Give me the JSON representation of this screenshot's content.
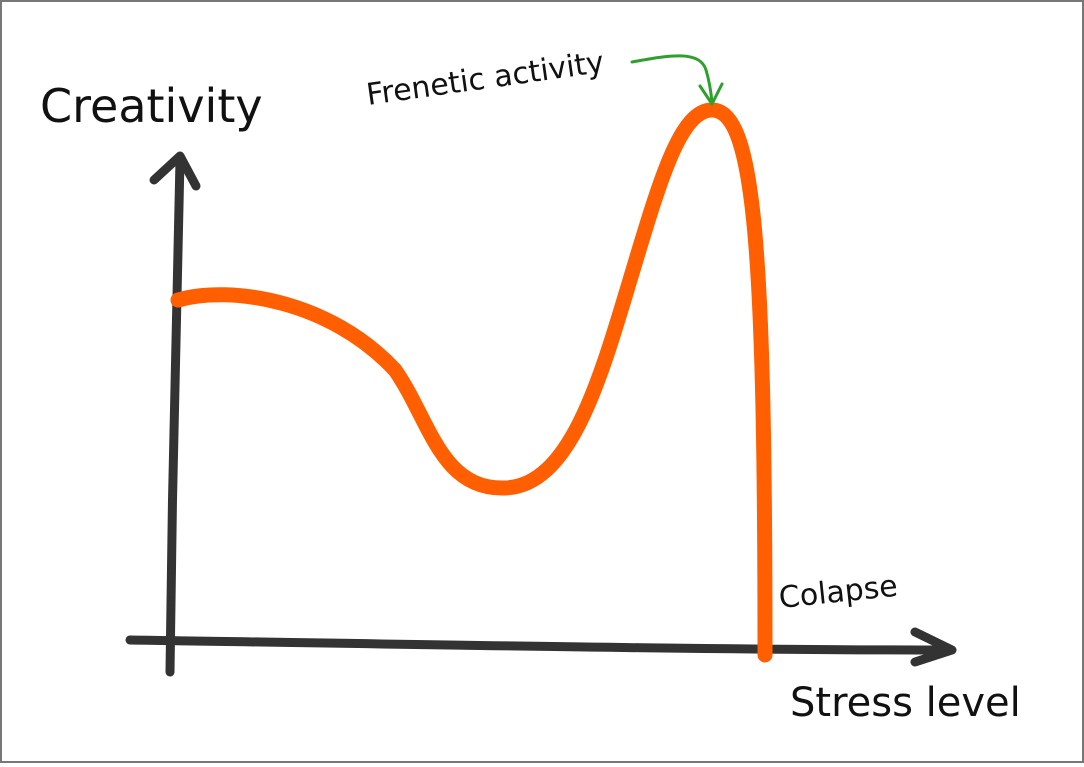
{
  "y_axis_label": "Creativity",
  "x_axis_label": "Stress level",
  "annotations": [
    "Frenetic activity",
    "Colapse"
  ]
}
